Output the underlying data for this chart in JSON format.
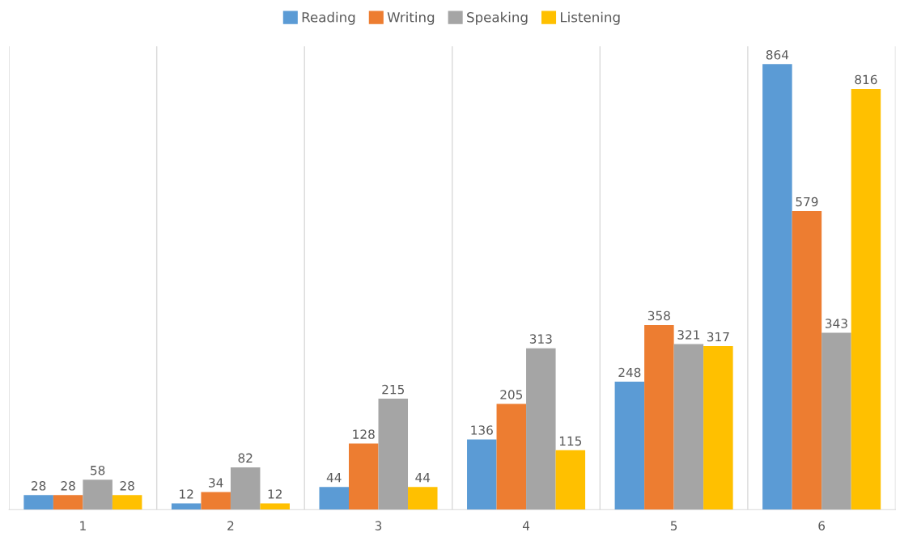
{
  "chart_data": {
    "type": "bar",
    "categories": [
      "1",
      "2",
      "3",
      "4",
      "5",
      "6"
    ],
    "series": [
      {
        "name": "Reading",
        "color": "#5b9bd5",
        "values": [
          28,
          12,
          44,
          136,
          248,
          864
        ]
      },
      {
        "name": "Writing",
        "color": "#ed7d31",
        "values": [
          28,
          34,
          128,
          205,
          358,
          579
        ]
      },
      {
        "name": "Speaking",
        "color": "#a5a5a5",
        "values": [
          58,
          82,
          215,
          313,
          321,
          343
        ]
      },
      {
        "name": "Listening",
        "color": "#ffc000",
        "values": [
          28,
          12,
          44,
          115,
          317,
          816
        ]
      }
    ],
    "data_labels": true,
    "grid": "x",
    "legend": "top",
    "tick_labels": "x"
  }
}
